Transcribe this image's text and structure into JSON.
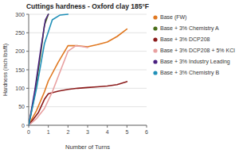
{
  "chart_data": {
    "type": "line",
    "title": "Cuttings hardness - Oxford clay 185°F",
    "xlabel": "Number of Turns",
    "ylabel": "Hardness (inch lbs/ft)",
    "xlim": [
      0,
      6
    ],
    "ylim": [
      0,
      300
    ],
    "xticks": [
      0,
      1,
      2,
      3,
      4,
      5,
      6
    ],
    "yticks": [
      0,
      50,
      100,
      150,
      200,
      250,
      300
    ],
    "grid": true,
    "legend": "right",
    "series": [
      {
        "name": "Base (FW)",
        "color": "#e07820",
        "x": [
          0,
          0.4,
          0.8,
          1.0,
          1.5,
          2.0,
          2.5,
          3.0,
          3.5,
          4.0,
          4.5,
          5.0
        ],
        "values": [
          0,
          40,
          90,
          120,
          170,
          215,
          215,
          212,
          218,
          225,
          240,
          260
        ]
      },
      {
        "name": "Base + 3% Chemistry A",
        "color": "#4a6e1a",
        "x": [
          0,
          0.3,
          0.6,
          0.8,
          1.0
        ],
        "values": [
          0,
          80,
          190,
          270,
          300
        ]
      },
      {
        "name": "Base + 3% DCP208",
        "color": "#8b1a1a",
        "x": [
          0,
          0.5,
          0.8,
          1.0,
          1.5,
          2.0,
          2.5,
          3.0,
          3.5,
          4.0,
          4.5,
          5.0
        ],
        "values": [
          0,
          35,
          70,
          85,
          92,
          97,
          100,
          102,
          104,
          106,
          110,
          118
        ]
      },
      {
        "name": "Base + 3% DCP208 + 5% KCl",
        "color": "#e8a0a0",
        "x": [
          0,
          0.4,
          0.8,
          1.2,
          1.6,
          2.0,
          2.4,
          2.8,
          3.0
        ],
        "values": [
          0,
          18,
          45,
          90,
          145,
          200,
          215,
          212,
          210
        ]
      },
      {
        "name": "Base + 3% Industry Leading",
        "color": "#4a2080",
        "x": [
          0,
          0.3,
          0.6,
          0.85,
          1.0
        ],
        "values": [
          0,
          90,
          200,
          285,
          300
        ]
      },
      {
        "name": "Base + 3% Chemistry B",
        "color": "#2090b8",
        "x": [
          0,
          0.4,
          0.8,
          1.2,
          1.6,
          2.0
        ],
        "values": [
          0,
          100,
          220,
          285,
          298,
          300
        ]
      }
    ]
  }
}
